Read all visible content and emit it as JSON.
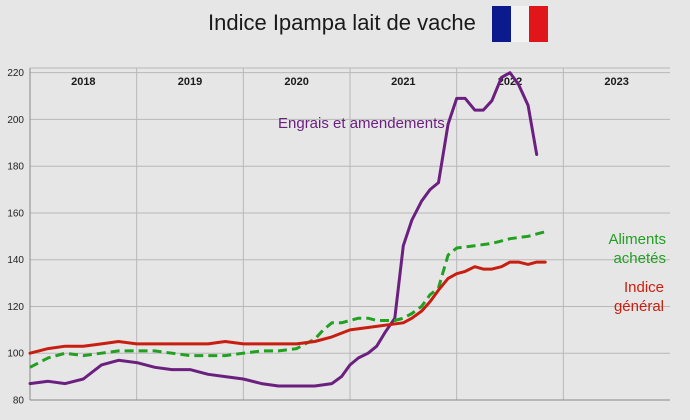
{
  "title": "Indice Ipampa lait de vache",
  "flag_colors": [
    "#0b1a8c",
    "#f2f2f2",
    "#e0161b"
  ],
  "chart_data": {
    "type": "line",
    "title": "Indice Ipampa lait de vache",
    "year_labels": [
      "2018",
      "2019",
      "2020",
      "2021",
      "2022",
      "2023"
    ],
    "yticks": [
      80,
      100,
      120,
      140,
      160,
      180,
      200,
      220
    ],
    "ylim": [
      80,
      222
    ],
    "xlim": [
      2018.0,
      2024.0
    ],
    "grid": true,
    "annotations": [
      {
        "text": "Engrais et amendements",
        "color": "#6b2080",
        "lines": [
          "Engrais et amendements"
        ]
      },
      {
        "text": "Aliments achetés",
        "color": "#22a022",
        "lines": [
          "Aliments",
          "achetés"
        ]
      },
      {
        "text": "Indice général",
        "color": "#c81e10",
        "lines": [
          "Indice",
          "général"
        ]
      }
    ],
    "series": [
      {
        "color": "#6b2080",
        "style": "solid",
        "x": [
          2018.0,
          2018.17,
          2018.33,
          2018.5,
          2018.67,
          2018.83,
          2019.0,
          2019.17,
          2019.33,
          2019.5,
          2019.67,
          2019.83,
          2020.0,
          2020.17,
          2020.33,
          2020.5,
          2020.67,
          2020.83,
          2020.92,
          2021.0,
          2021.08,
          2021.17,
          2021.25,
          2021.33,
          2021.42,
          2021.5,
          2021.58,
          2021.67,
          2021.75,
          2021.83,
          2021.92,
          2022.0,
          2022.08,
          2022.17,
          2022.25,
          2022.33,
          2022.42,
          2022.5,
          2022.58,
          2022.67,
          2022.75
        ],
        "y": [
          87,
          88,
          87,
          89,
          95,
          97,
          96,
          94,
          93,
          93,
          91,
          90,
          89,
          87,
          86,
          86,
          86,
          87,
          90,
          95,
          98,
          100,
          103,
          109,
          115,
          146,
          157,
          165,
          170,
          173,
          198,
          209,
          209,
          204,
          204,
          208,
          218,
          220,
          215,
          206,
          185
        ]
      },
      {
        "color": "#22a022",
        "style": "dashed",
        "x": [
          2018.0,
          2018.17,
          2018.33,
          2018.5,
          2018.67,
          2018.83,
          2019.0,
          2019.17,
          2019.33,
          2019.5,
          2019.67,
          2019.83,
          2020.0,
          2020.17,
          2020.33,
          2020.5,
          2020.58,
          2020.67,
          2020.75,
          2020.83,
          2020.92,
          2021.0,
          2021.08,
          2021.17,
          2021.25,
          2021.33,
          2021.42,
          2021.5,
          2021.58,
          2021.67,
          2021.75,
          2021.83,
          2021.92,
          2022.0,
          2022.17,
          2022.33,
          2022.5,
          2022.67,
          2022.83
        ],
        "y": [
          94,
          98,
          100,
          99,
          100,
          101,
          101,
          101,
          100,
          99,
          99,
          99,
          100,
          101,
          101,
          102,
          104,
          106,
          110,
          113,
          113,
          114,
          115,
          115,
          114,
          114,
          114,
          115,
          117,
          120,
          125,
          128,
          142,
          145,
          146,
          147,
          149,
          150,
          152
        ]
      },
      {
        "color": "#c81e10",
        "style": "solid",
        "x": [
          2018.0,
          2018.17,
          2018.33,
          2018.5,
          2018.67,
          2018.83,
          2019.0,
          2019.17,
          2019.33,
          2019.5,
          2019.67,
          2019.83,
          2020.0,
          2020.17,
          2020.33,
          2020.5,
          2020.67,
          2020.83,
          2021.0,
          2021.17,
          2021.33,
          2021.5,
          2021.58,
          2021.67,
          2021.75,
          2021.83,
          2021.92,
          2022.0,
          2022.08,
          2022.17,
          2022.25,
          2022.33,
          2022.42,
          2022.5,
          2022.58,
          2022.67,
          2022.75,
          2022.83
        ],
        "y": [
          100,
          102,
          103,
          103,
          104,
          105,
          104,
          104,
          104,
          104,
          104,
          105,
          104,
          104,
          104,
          104,
          105,
          107,
          110,
          111,
          112,
          113,
          115,
          118,
          122,
          127,
          132,
          134,
          135,
          137,
          136,
          136,
          137,
          139,
          139,
          138,
          139,
          139
        ]
      }
    ]
  }
}
